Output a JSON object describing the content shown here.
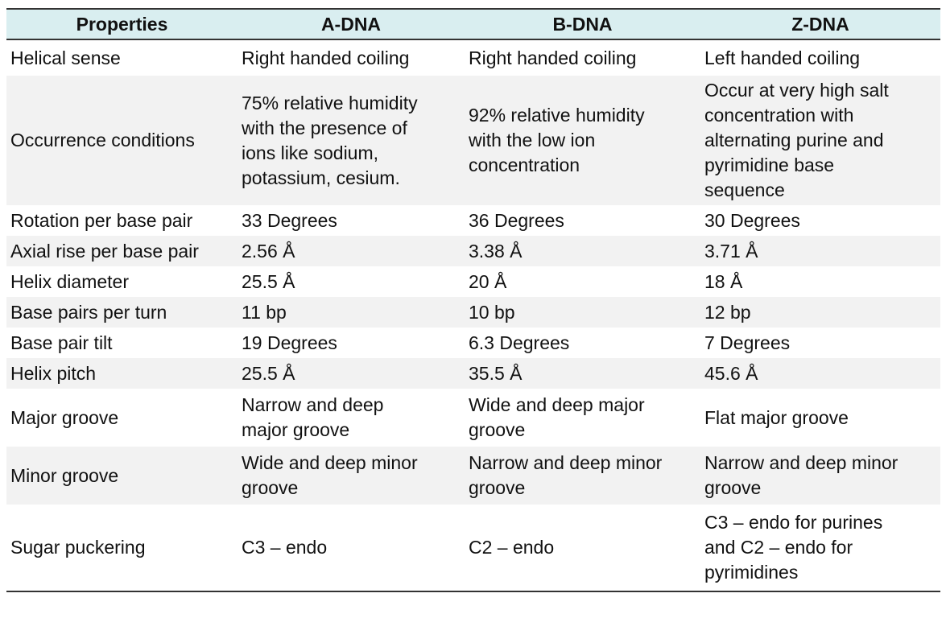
{
  "table": {
    "headers": [
      "Properties",
      "A-DNA",
      "B-DNA",
      "Z-DNA"
    ],
    "rows": [
      {
        "property": "Helical sense",
        "a": "Right handed coiling",
        "b": "Right handed coiling",
        "z": "Left handed coiling"
      },
      {
        "property": "Occurrence conditions",
        "a": [
          "75% relative humidity",
          "with the presence of",
          "ions like sodium,",
          "potassium, cesium."
        ],
        "b": [
          "92% relative humidity",
          "with the low ion",
          "concentration"
        ],
        "z": [
          "Occur at very high salt",
          "concentration with",
          "alternating purine and",
          "pyrimidine base",
          "sequence"
        ]
      },
      {
        "property": "Rotation per base pair",
        "a": "33 Degrees",
        "b": "36 Degrees",
        "z": "30 Degrees"
      },
      {
        "property": "Axial rise per base pair",
        "a": "2.56 Å",
        "b": "3.38 Å",
        "z": "3.71 Å"
      },
      {
        "property": "Helix diameter",
        "a": "25.5 Å",
        "b": "20 Å",
        "z": "18 Å"
      },
      {
        "property": "Base pairs per turn",
        "a": "11 bp",
        "b": "10 bp",
        "z": "12 bp"
      },
      {
        "property": "Base pair tilt",
        "a": "19 Degrees",
        "b": "6.3 Degrees",
        "z": "7 Degrees"
      },
      {
        "property": "Helix pitch",
        "a": "25.5 Å",
        "b": "35.5 Å",
        "z": "45.6 Å"
      },
      {
        "property": "Major groove",
        "a": [
          "Narrow and deep",
          "major groove"
        ],
        "b": [
          "Wide and deep major",
          "groove"
        ],
        "z": "Flat major groove"
      },
      {
        "property": "Minor groove",
        "a": [
          "Wide and deep minor",
          "groove"
        ],
        "b": [
          "Narrow and deep minor",
          "groove"
        ],
        "z": [
          "Narrow and deep minor",
          "groove"
        ]
      },
      {
        "property": "Sugar puckering",
        "a": "C3 – endo",
        "b": "C2 – endo",
        "z": [
          "C3 – endo for purines",
          "and C2 – endo for",
          "pyrimidines"
        ]
      }
    ]
  },
  "colors": {
    "header_bg": "#d9eef0",
    "row_shade": "#f2f2f2",
    "rule": "#333333"
  }
}
